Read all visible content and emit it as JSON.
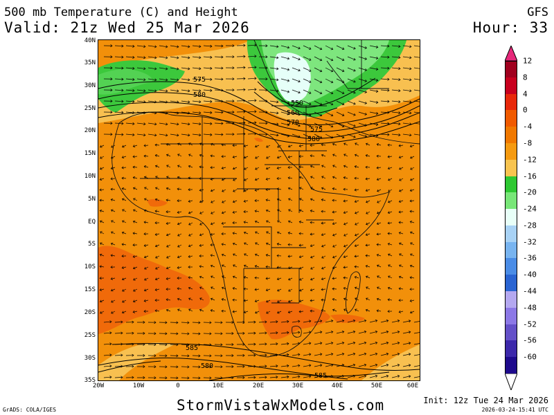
{
  "header": {
    "title": "500 mb Temperature (C) and Height",
    "valid": "Valid: 21z Wed 25 Mar 2026",
    "model": "GFS",
    "hour": "Hour: 33"
  },
  "lat_labels": [
    "40N",
    "35N",
    "30N",
    "25N",
    "20N",
    "15N",
    "10N",
    "5N",
    "EQ",
    "5S",
    "10S",
    "15S",
    "20S",
    "25S",
    "30S",
    "35S"
  ],
  "lon_labels": [
    "20W",
    "10W",
    "0",
    "10E",
    "20E",
    "30E",
    "40E",
    "50E",
    "60E"
  ],
  "contours": {
    "north_575": "575",
    "north_580": "580",
    "trough_550": "550",
    "trough_560": "560",
    "trough_570": "570",
    "trough_575": "575",
    "trough_580": "580",
    "south_585": "585",
    "south_580": "580",
    "south_585b": "585"
  },
  "colorbar": {
    "labels": [
      "12",
      "8",
      "4",
      "0",
      "-4",
      "-8",
      "-12",
      "-16",
      "-20",
      "-24",
      "-28",
      "-32",
      "-36",
      "-40",
      "-44",
      "-48",
      "-52",
      "-56",
      "-60"
    ],
    "colors": [
      "#a0001e",
      "#c8001e",
      "#e8280a",
      "#f05a00",
      "#f07800",
      "#f59a10",
      "#f8c450",
      "#2ec832",
      "#78e678",
      "#e8fff8",
      "#a8d2f5",
      "#78b4f0",
      "#4a8ce6",
      "#2a64d2",
      "#b4a8f0",
      "#8c78e6",
      "#6450c8",
      "#3c28aa",
      "#1e0a8c"
    ],
    "top_color": "#e6287a",
    "bottom_color": "#ffffff"
  },
  "footer": {
    "brand": "StormVistaWxModels.com",
    "grads": "GrADS: COLA/IGES",
    "init": "Init: 12z Tue 24 Mar 2026",
    "stamp": "2026-03-24-15:41 UTC"
  },
  "colors": {
    "warm_base": "#f2900a",
    "warm_hot": "#f06a0a",
    "cool_yellow": "#f8c050",
    "green": "#3cc83c",
    "light_green": "#7ee67e",
    "pale": "#e6fff8"
  }
}
